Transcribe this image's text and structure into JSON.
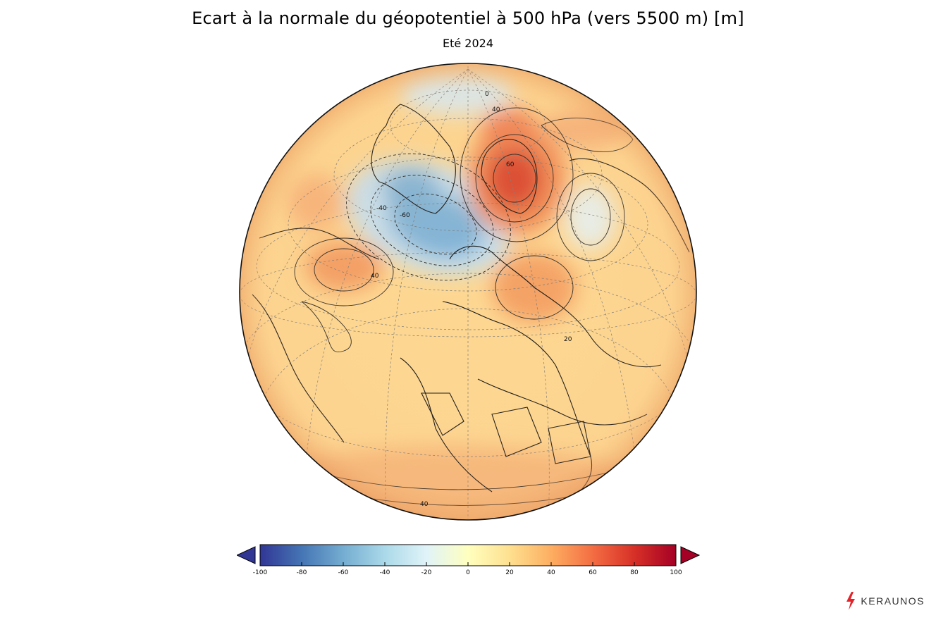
{
  "header": {
    "title": "Ecart à la normale du géopotentiel à 500 hPa (vers 5500 m)  [m]",
    "subtitle": "Eté 2024"
  },
  "map": {
    "projection": "orthographic",
    "contour_labels": [
      {
        "text": "-40",
        "label": "contour"
      },
      {
        "text": "-60",
        "label": "contour"
      },
      {
        "text": "0",
        "label": "contour"
      },
      {
        "text": "40",
        "label": "contour"
      },
      {
        "text": "60",
        "label": "contour"
      },
      {
        "text": "40",
        "label": "contour"
      },
      {
        "text": "20",
        "label": "contour"
      },
      {
        "text": "40",
        "label": "contour"
      }
    ]
  },
  "colorbar": {
    "min": -100,
    "max": 100,
    "ticks": [
      "-100",
      "-80",
      "-60",
      "-40",
      "-20",
      "0",
      "20",
      "40",
      "60",
      "80",
      "100"
    ],
    "colors": [
      "#313695",
      "#4575b4",
      "#74add1",
      "#abd9e9",
      "#e0f3f8",
      "#ffffbf",
      "#fee090",
      "#fdae61",
      "#f46d43",
      "#d73027",
      "#a50026"
    ],
    "extend": "both"
  },
  "brand": {
    "name": "KERAUNOS",
    "icon": "lightning-bolt-icon",
    "accent": "#e3232a"
  }
}
